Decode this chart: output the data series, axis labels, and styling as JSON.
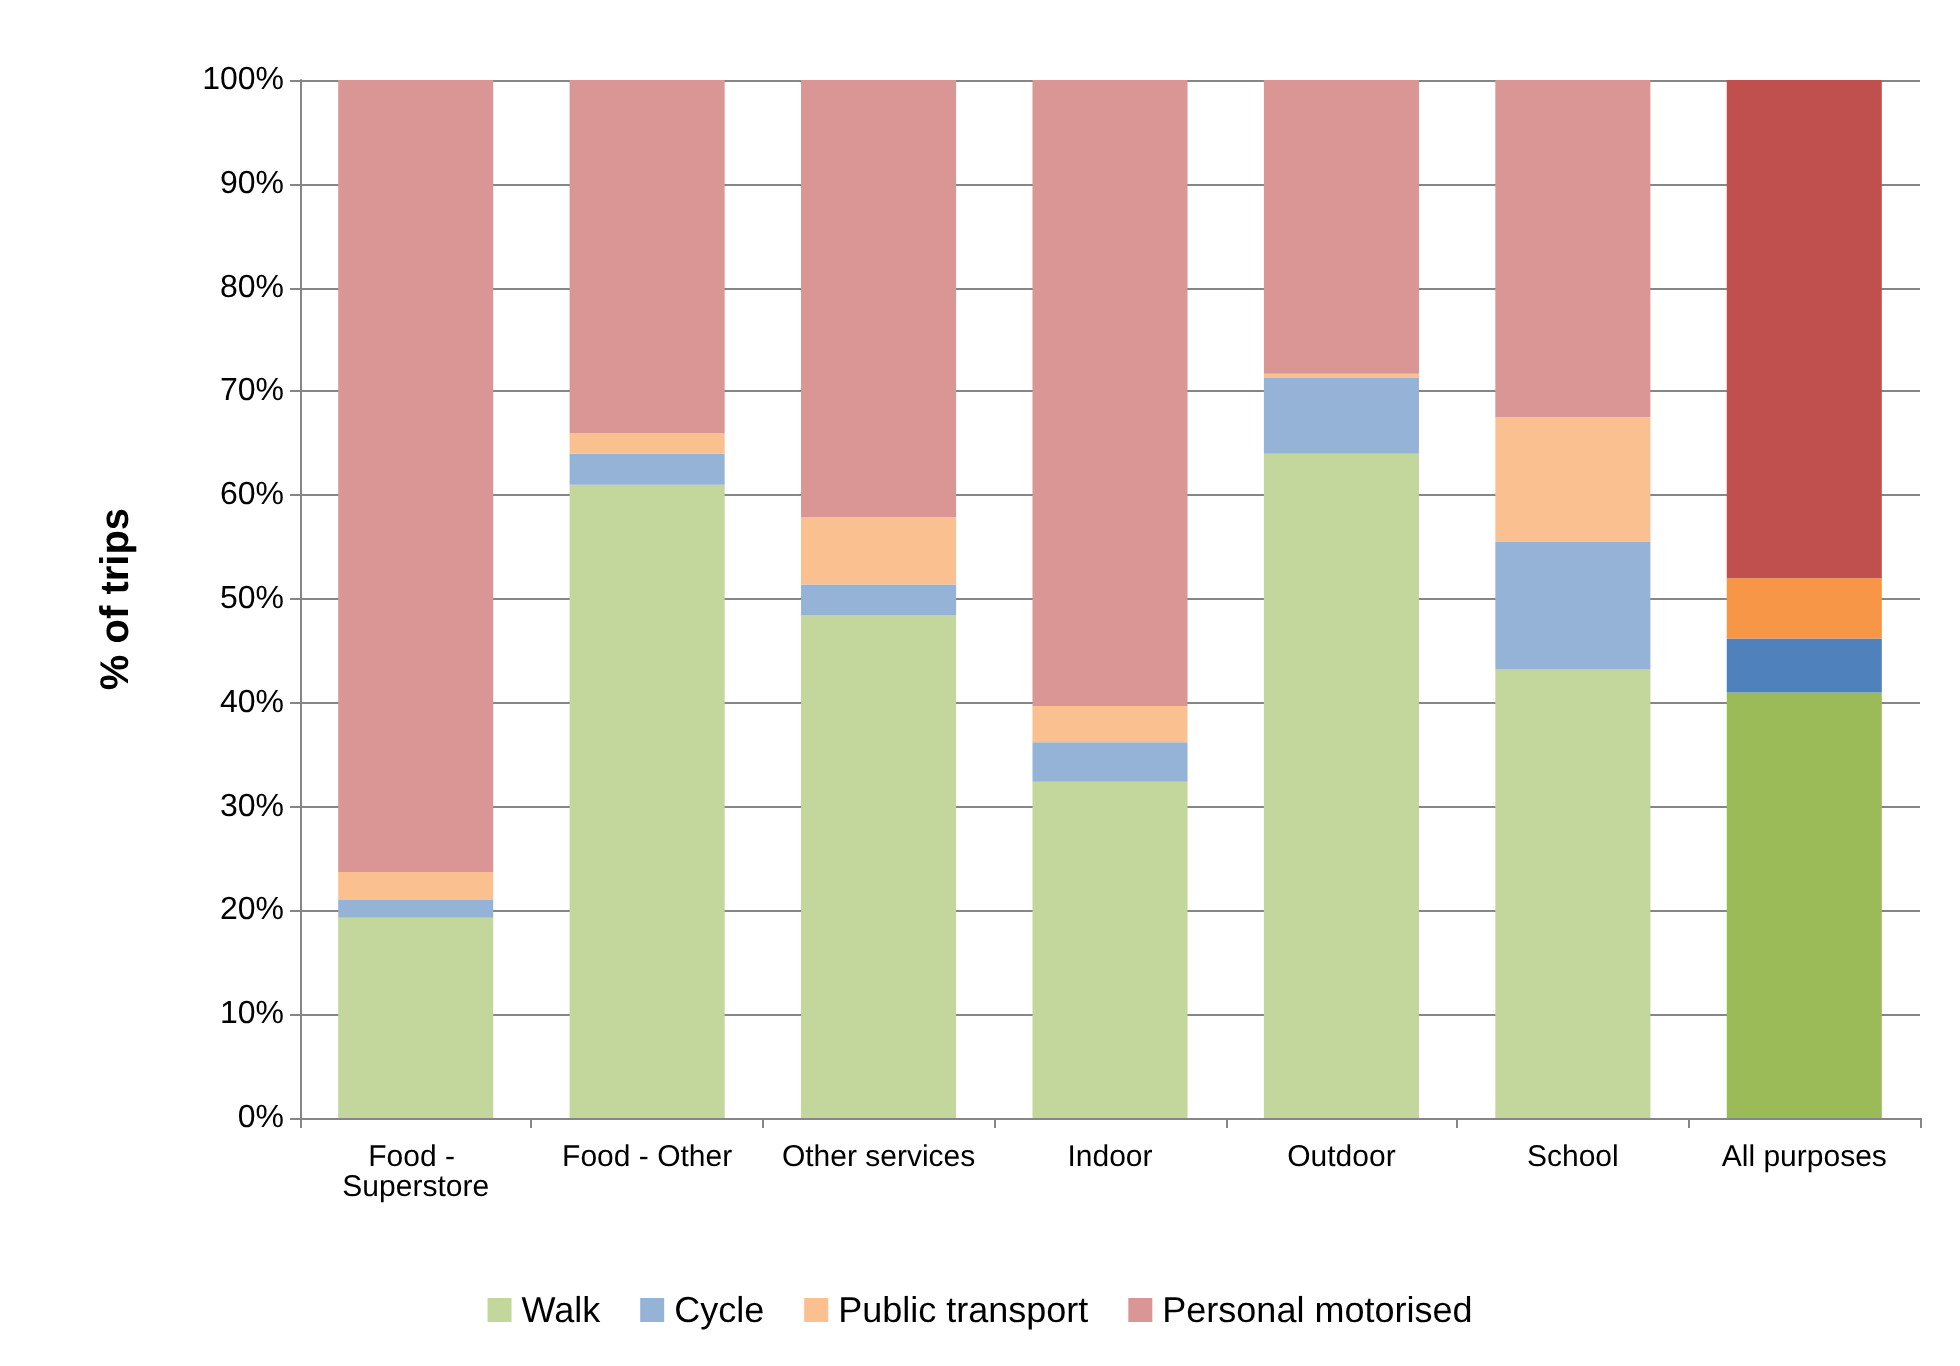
{
  "chart_data": {
    "type": "bar",
    "stacked": true,
    "ylabel": "% of trips",
    "categories": [
      "Food - Superstore",
      "Food - Other",
      "Other services",
      "Indoor",
      "Outdoor",
      "School",
      "All purposes"
    ],
    "series": [
      {
        "name": "Walk",
        "color": "#c3d69b",
        "colors": [
          "#c3d69b",
          "#c3d69b",
          "#c3d69b",
          "#c3d69b",
          "#c3d69b",
          "#c3d69b",
          "#9bbb59"
        ],
        "values": [
          19.3,
          61,
          48.4,
          32.4,
          64,
          43.2,
          41
        ]
      },
      {
        "name": "Cycle",
        "color": "#95b3d7",
        "colors": [
          "#95b3d7",
          "#95b3d7",
          "#95b3d7",
          "#95b3d7",
          "#95b3d7",
          "#95b3d7",
          "#4f81bd"
        ],
        "values": [
          1.7,
          3,
          3,
          3.8,
          7.3,
          12.3,
          5.2
        ]
      },
      {
        "name": "Public transport",
        "color": "#fac090",
        "colors": [
          "#fac090",
          "#fac090",
          "#fac090",
          "#fac090",
          "#fac090",
          "#fac090",
          "#f79646"
        ],
        "values": [
          2.7,
          2,
          6.5,
          3.5,
          0.4,
          12,
          5.8
        ]
      },
      {
        "name": "Personal motorised",
        "color": "#d99694",
        "colors": [
          "#d99694",
          "#d99694",
          "#d99694",
          "#d99694",
          "#d99694",
          "#d99694",
          "#c0504d"
        ],
        "values": [
          76.3,
          34,
          42.1,
          60.3,
          28.3,
          32.5,
          48
        ]
      }
    ],
    "ylim": [
      0,
      100
    ],
    "yticks": [
      {
        "value": 0,
        "label": "0%"
      },
      {
        "value": 10,
        "label": "10%"
      },
      {
        "value": 20,
        "label": "20%"
      },
      {
        "value": 30,
        "label": "30%"
      },
      {
        "value": 40,
        "label": "40%"
      },
      {
        "value": 50,
        "label": "50%"
      },
      {
        "value": 60,
        "label": "60%"
      },
      {
        "value": 70,
        "label": "70%"
      },
      {
        "value": 80,
        "label": "80%"
      },
      {
        "value": 90,
        "label": "90%"
      },
      {
        "value": 100,
        "label": "100%"
      }
    ],
    "grid": "y",
    "legend": "bottom"
  }
}
